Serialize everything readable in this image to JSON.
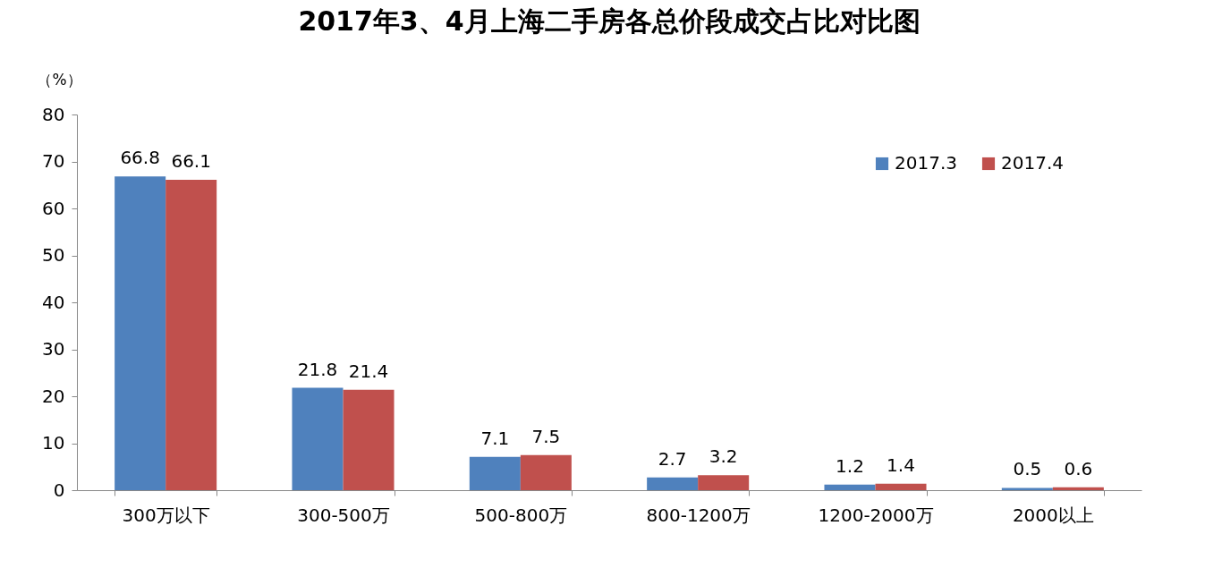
{
  "chart_data": {
    "type": "bar",
    "title": "2017年3、4月上海二手房各总价段成交占比对比图",
    "ylabel": "（%）",
    "categories": [
      "300万以下",
      "300-500万",
      "500-800万",
      "800-1200万",
      "1200-2000万",
      "2000以上"
    ],
    "series": [
      {
        "name": "2017.3",
        "color": "#4f81bd",
        "values": [
          66.8,
          21.8,
          7.1,
          2.7,
          1.2,
          0.5
        ]
      },
      {
        "name": "2017.4",
        "color": "#c0504d",
        "values": [
          66.1,
          21.4,
          7.5,
          3.2,
          1.4,
          0.6
        ]
      }
    ],
    "ylim": [
      0,
      80
    ],
    "yticks": [
      0,
      10,
      20,
      30,
      40,
      50,
      60,
      70,
      80
    ],
    "grid": false,
    "legend": "top right",
    "data_labels": true
  }
}
